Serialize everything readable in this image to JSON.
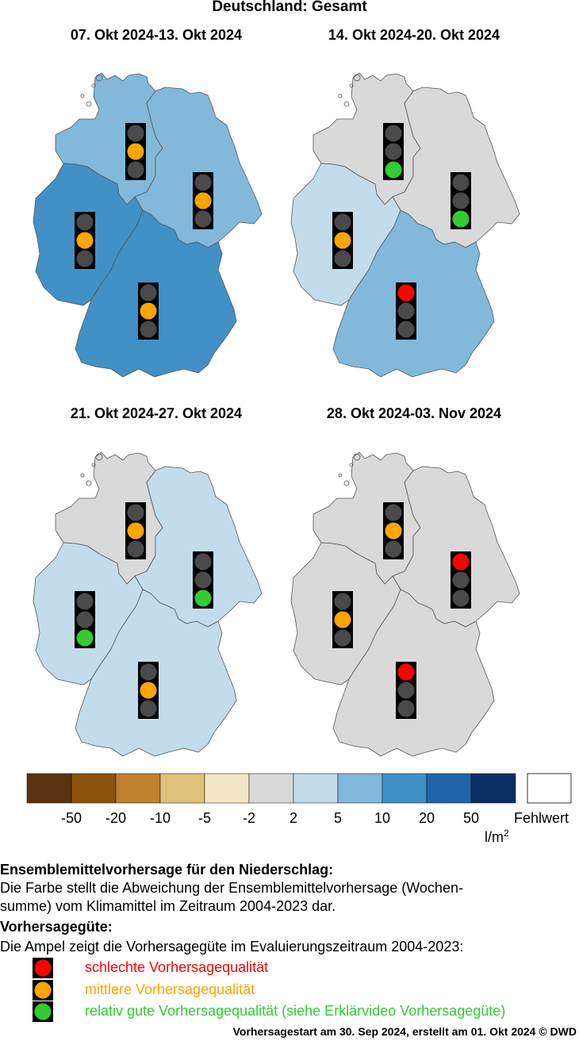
{
  "title": "Deutschland: Gesamt",
  "colors": {
    "brown_dark": "#5a3410",
    "brown": "#8a520d",
    "brown_mid": "#bf8130",
    "tan": "#dfc17b",
    "cream": "#f5e6c6",
    "grey": "#d9d9d9",
    "blue_pale": "#c2dcec",
    "blue_light": "#82b9da",
    "blue_mid": "#4190c6",
    "blue_dark": "#1f64aa",
    "navy": "#0a2f62",
    "good": "#33cc33",
    "medium": "#ffa500",
    "bad": "#ff0000",
    "off": "#4a4a4a"
  },
  "panels": [
    {
      "title": "07. Okt 2024-13. Okt 2024",
      "regions": {
        "north": "blue_light",
        "east": "blue_light",
        "west": "blue_mid",
        "south": "blue_mid"
      },
      "lights": {
        "north": "medium",
        "east": "medium",
        "west": "medium",
        "south": "medium"
      }
    },
    {
      "title": "14. Okt 2024-20. Okt 2024",
      "regions": {
        "north": "grey",
        "east": "grey",
        "west": "blue_pale",
        "south": "blue_light"
      },
      "lights": {
        "north": "good",
        "east": "good",
        "west": "medium",
        "south": "bad"
      }
    },
    {
      "title": "21. Okt 2024-27. Okt 2024",
      "regions": {
        "north": "grey",
        "east": "blue_pale",
        "west": "blue_pale",
        "south": "blue_pale"
      },
      "lights": {
        "north": "medium",
        "east": "good",
        "west": "good",
        "south": "medium"
      }
    },
    {
      "title": "28. Okt 2024-03. Nov 2024",
      "regions": {
        "north": "grey",
        "east": "grey",
        "west": "grey",
        "south": "grey"
      },
      "lights": {
        "north": "medium",
        "east": "bad",
        "west": "medium",
        "south": "bad"
      }
    }
  ],
  "colorbar": {
    "bins": [
      "brown_dark",
      "brown",
      "brown_mid",
      "tan",
      "cream",
      "grey",
      "blue_pale",
      "blue_light",
      "blue_mid",
      "blue_dark",
      "navy"
    ],
    "ticks": [
      "-50",
      "-20",
      "-10",
      "-5",
      "-2",
      "2",
      "5",
      "10",
      "20",
      "50"
    ],
    "unit_main": "l/m",
    "unit_sup": "2",
    "missing_label": "Fehlwert"
  },
  "text": {
    "heading1": "Ensemblemittelvorhersage für den Niederschlag:",
    "para1_line1": "Die Farbe stellt die Abweichung der Ensemblemittelvorhersage (Wochen-",
    "para1_line2": "summe) vom Klimamittel im Zeitraum 2004-2023 dar.",
    "heading2": "Vorhersagegüte:",
    "para2": "Die Ampel zeigt die Vorhersagegüte im Evaluierungszeitraum 2004-2023:"
  },
  "legend": [
    {
      "level": "bad",
      "label": "schlechte Vorhersagequalität"
    },
    {
      "level": "medium",
      "label": "mittlere Vorhersagequalität"
    },
    {
      "level": "good",
      "label": "relativ gute Vorhersagequalität (siehe Erklärvideo Vorhersagegüte)"
    }
  ],
  "footer": "Vorhersagestart am 30. Sep 2024, erstellt am 01. Okt 2024 © DWD"
}
